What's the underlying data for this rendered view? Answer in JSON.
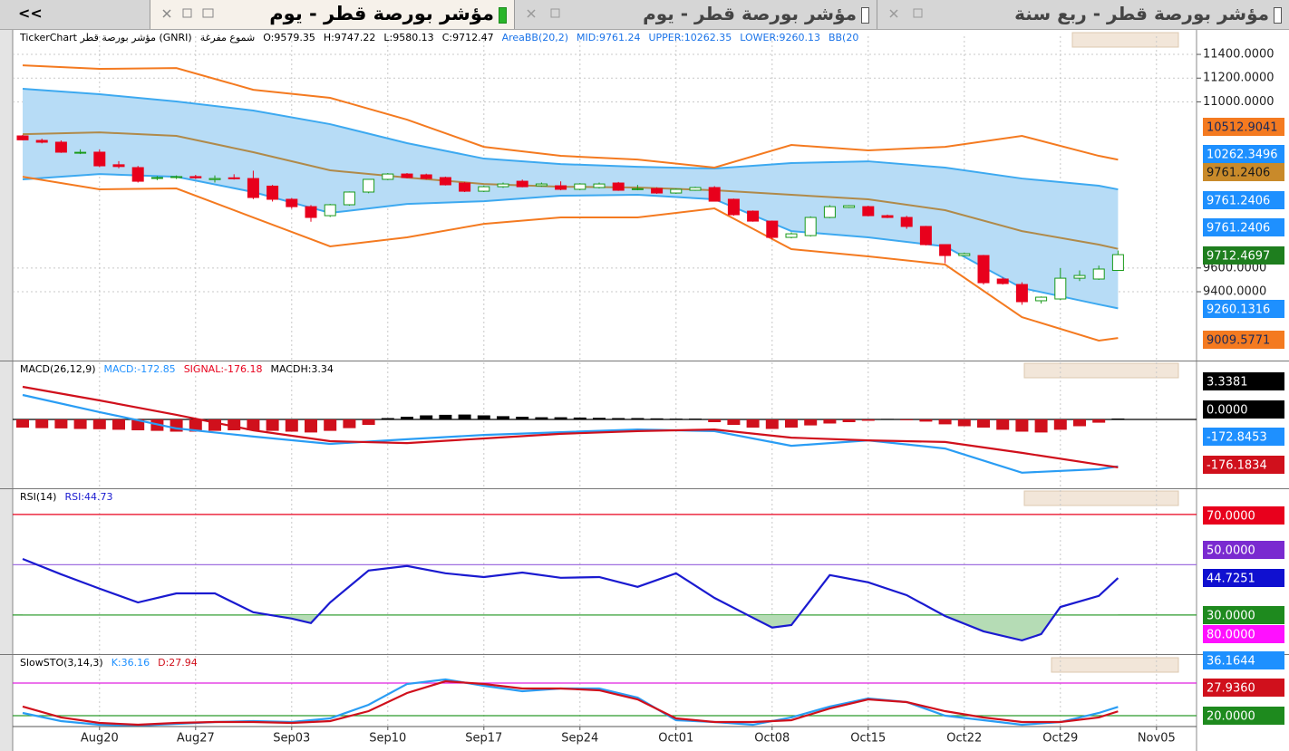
{
  "collapse_button": "<<",
  "tabs": [
    "مؤشر بورصة قطر - ربع سنة",
    "مؤشر بورصة قطر - يوم",
    "مؤشر بورصة قطر - يوم"
  ],
  "chart_data": [
    {
      "type": "candlestick",
      "info": [
        {
          "text": "TickerChart مؤشر بورصة قطر (GNRI)",
          "color": "#000000"
        },
        {
          "text": "شموع مفرغة",
          "color": "#000000"
        },
        {
          "text": "O:9579.35",
          "color": "#000000"
        },
        {
          "text": "H:9747.22",
          "color": "#000000"
        },
        {
          "text": "L:9580.13",
          "color": "#000000"
        },
        {
          "text": "C:9712.47",
          "color": "#000000"
        },
        {
          "text": "AreaBB(20,2)",
          "color": "#1a73e8"
        },
        {
          "text": "MID:9761.24",
          "color": "#1a73e8"
        },
        {
          "text": "UPPER:10262.35",
          "color": "#1a73e8"
        },
        {
          "text": "LOWER:9260.13",
          "color": "#1a73e8"
        },
        {
          "text": "BB(20",
          "color": "#1a73e8"
        }
      ],
      "categories": [
        null,
        null,
        null,
        null,
        "Aug20",
        null,
        null,
        null,
        null,
        "Aug27",
        null,
        null,
        null,
        null,
        "Sep03",
        null,
        null,
        null,
        null,
        "Sep10",
        null,
        null,
        null,
        null,
        "Sep17",
        null,
        null,
        null,
        null,
        "Sep24",
        null,
        null,
        null,
        null,
        "Oct01",
        null,
        null,
        null,
        null,
        "Oct08",
        null,
        null,
        null,
        null,
        "Oct15",
        null,
        null,
        null,
        null,
        "Oct22",
        null,
        null,
        null,
        null,
        "Oct29",
        null,
        null,
        null,
        null,
        "Nov05"
      ],
      "open": [
        10713,
        10675,
        10660,
        10570,
        10576,
        10470,
        10446,
        10355,
        10362,
        10370,
        10345,
        10360,
        10354,
        10290,
        10179,
        10117,
        10041,
        10133,
        10240,
        10347,
        10392,
        10385,
        10362,
        10316,
        10247,
        10285,
        10331,
        10293,
        10293,
        10263,
        10278,
        10316,
        10263,
        10270,
        10232,
        10255,
        10278,
        10179,
        10079,
        9995,
        9858,
        9873,
        10026,
        10110,
        10117,
        10041,
        10026,
        9950,
        9797,
        9705,
        9705,
        9507,
        9461,
        9324,
        9339,
        9514,
        9507,
        9579.35,
        null,
        null
      ],
      "high": [
        10722,
        10690,
        10675,
        10600,
        10600,
        10500,
        10460,
        10375,
        10380,
        10385,
        10380,
        10390,
        10420,
        10300,
        10190,
        10130,
        10140,
        10245,
        10350,
        10400,
        10400,
        10395,
        10370,
        10325,
        10295,
        10320,
        10345,
        10320,
        10330,
        10315,
        10320,
        10325,
        10300,
        10280,
        10270,
        10285,
        10290,
        10185,
        10085,
        10000,
        9900,
        10035,
        10130,
        10130,
        10125,
        10050,
        10040,
        9955,
        9800,
        9730,
        9710,
        9520,
        9480,
        9360,
        9600,
        9580,
        9620,
        9747.22,
        null,
        null
      ],
      "low": [
        10675,
        10650,
        10570,
        10560,
        10450,
        10440,
        10320,
        10340,
        10350,
        10350,
        10320,
        10345,
        10180,
        10160,
        10100,
        9990,
        10030,
        10125,
        10230,
        10340,
        10355,
        10345,
        10295,
        10240,
        10240,
        10275,
        10280,
        10285,
        10255,
        10255,
        10270,
        10250,
        10255,
        10225,
        10225,
        10250,
        10160,
        10040,
        9990,
        9840,
        9850,
        9865,
        10020,
        10105,
        10035,
        10020,
        9930,
        9790,
        9640,
        9700,
        9460,
        9460,
        9290,
        9300,
        9330,
        9490,
        9500,
        9580.13,
        null,
        null
      ],
      "close": [
        10680,
        10660,
        10576,
        10575,
        10461,
        10455,
        10331,
        10362,
        10370,
        10360,
        10354,
        10352,
        10194,
        10179,
        10117,
        10026,
        10133,
        10240,
        10347,
        10392,
        10362,
        10354,
        10301,
        10247,
        10285,
        10308,
        10285,
        10308,
        10263,
        10308,
        10308,
        10255,
        10268,
        10232,
        10263,
        10278,
        10163,
        10049,
        9995,
        9858,
        9888,
        10026,
        10117,
        10125,
        10041,
        10026,
        9950,
        9797,
        9705,
        9721,
        9476,
        9469,
        9316,
        9354,
        9514,
        9537,
        9591,
        9712.47,
        null,
        null
      ],
      "up_color": "#1a9a1a",
      "down_color": "#e8001c",
      "lines": [
        {
          "color": "#3da9f0",
          "x": [
            0,
            4,
            8,
            12,
            16,
            20,
            24,
            28,
            32,
            36,
            40,
            44,
            48,
            52,
            56,
            57
          ],
          "values": [
            11110,
            11064,
            11003,
            10927,
            10812,
            10652,
            10522,
            10476,
            10453,
            10438,
            10484,
            10499,
            10446,
            10354,
            10293,
            10262.35
          ]
        },
        {
          "color": "#3da9f0",
          "x": [
            0,
            4,
            8,
            12,
            16,
            20,
            24,
            28,
            32,
            36,
            40,
            44,
            48,
            52,
            56,
            57
          ],
          "values": [
            10347,
            10392,
            10369,
            10240,
            10064,
            10140,
            10163,
            10209,
            10217,
            10179,
            9911,
            9858,
            9782,
            9431,
            9293,
            9260.13
          ]
        },
        {
          "color": "#b08a4a",
          "x": [
            0,
            4,
            8,
            12,
            16,
            20,
            24,
            28,
            32,
            36,
            40,
            44,
            48,
            52,
            56,
            57
          ],
          "values": [
            10728,
            10743,
            10713,
            10576,
            10423,
            10362,
            10308,
            10285,
            10278,
            10255,
            10217,
            10179,
            10087,
            9911,
            9797,
            9761.24
          ]
        },
        {
          "color": "#f47a20",
          "x": [
            0,
            4,
            8,
            12,
            16,
            20,
            24,
            28,
            32,
            36,
            40,
            44,
            48,
            52,
            56,
            57
          ],
          "values": [
            11308,
            11278,
            11285,
            11102,
            11034,
            10850,
            10621,
            10545,
            10514,
            10446,
            10637,
            10591,
            10621,
            10713,
            10545,
            10512.9
          ]
        },
        {
          "color": "#f47a20",
          "x": [
            0,
            4,
            8,
            12,
            16,
            20,
            24,
            28,
            32,
            36,
            40,
            44,
            48,
            52,
            56,
            57
          ],
          "values": [
            10369,
            10263,
            10270,
            10026,
            9782,
            9858,
            9972,
            10026,
            10026,
            10102,
            9759,
            9698,
            9629,
            9186,
            8988,
            9009.58
          ]
        }
      ],
      "fill_between": [
        0,
        1
      ],
      "fill_color": "#b7dcf6",
      "ylim": [
        8820,
        11553
      ],
      "yticks": [
        {
          "value": 9400,
          "label": "9400.0000"
        },
        {
          "value": 9600,
          "label": "9600.0000"
        },
        {
          "value": 11000,
          "label": "11000.0000"
        },
        {
          "value": 11200,
          "label": "11200.0000"
        },
        {
          "value": 11400,
          "label": "11400.0000"
        }
      ],
      "grid": true,
      "badges": [
        {
          "value": 10512.9041,
          "color": "#f47a20",
          "text_color": "#1a2a5a"
        },
        {
          "value": 10262.3496,
          "color": "#1e90ff",
          "text_color": "#ffffff"
        },
        {
          "value": 9761.2406,
          "color": "#c98a2a",
          "text_color": "#1a1a1a"
        },
        {
          "value": 9761.2406,
          "color": "#1e90ff",
          "text_color": "#ffffff"
        },
        {
          "value": 9761.2406,
          "color": "#1e90ff",
          "text_color": "#ffffff"
        },
        {
          "value": 9712.4697,
          "color": "#1e7e1e",
          "text_color": "#ffffff"
        },
        {
          "value": 9260.1316,
          "color": "#1e90ff",
          "text_color": "#ffffff"
        },
        {
          "value": 9009.5771,
          "color": "#f47a20",
          "text_color": "#1a2a5a"
        }
      ]
    },
    {
      "type": "line",
      "info": [
        {
          "text": "MACD(26,12,9)",
          "color": "#000000"
        },
        {
          "text": "MACD:-172.85",
          "color": "#1e90ff"
        },
        {
          "text": "SIGNAL:-176.18",
          "color": "#e8001c"
        },
        {
          "text": "MACDH:3.34",
          "color": "#000000"
        }
      ],
      "histogram": [
        -30,
        -32,
        -33,
        -35,
        -36,
        -38,
        -40,
        -42,
        -45,
        -45,
        -42,
        -40,
        -40,
        -42,
        -45,
        -48,
        -42,
        -32,
        -20,
        5,
        10,
        15,
        17,
        18,
        15,
        12,
        10,
        8,
        8,
        7,
        6,
        5,
        5,
        4,
        3,
        3,
        -10,
        -20,
        -30,
        -35,
        -30,
        -22,
        -15,
        -10,
        -5,
        2,
        -3,
        -8,
        -18,
        -25,
        -30,
        -38,
        -45,
        -48,
        -38,
        -25,
        -12,
        3.34
      ],
      "histogram_colors": {
        "up": "#000000",
        "down": "#d0101c"
      },
      "lines": [
        {
          "color": "#2a9df4",
          "x": [
            0,
            4,
            8,
            12,
            16,
            20,
            24,
            28,
            32,
            36,
            40,
            44,
            48,
            52,
            56,
            57
          ],
          "values": [
            90,
            27,
            -33,
            -63,
            -90,
            -73,
            -57,
            -47,
            -37,
            -43,
            -97,
            -77,
            -107,
            -196,
            -183,
            -172.85
          ]
        },
        {
          "color": "#d0101c",
          "x": [
            0,
            4,
            8,
            12,
            16,
            20,
            24,
            28,
            32,
            36,
            40,
            44,
            48,
            52,
            56,
            57
          ],
          "values": [
            120,
            70,
            17,
            -40,
            -80,
            -87,
            -70,
            -53,
            -43,
            -37,
            -67,
            -77,
            -83,
            -123,
            -166,
            -176.18
          ]
        }
      ],
      "levels": [
        {
          "value": 0,
          "color": "#000000"
        }
      ],
      "ylim": [
        -250,
        210
      ],
      "badges": [
        {
          "value": 3.3381,
          "color": "#000000",
          "text_color": "#ffffff"
        },
        {
          "value": 0,
          "label": "0.0000",
          "color": "#000000",
          "text_color": "#ffffff"
        },
        {
          "value": -172.8453,
          "color": "#1e90ff",
          "text_color": "#ffffff"
        },
        {
          "value": -176.1834,
          "color": "#d0101c",
          "text_color": "#ffffff"
        }
      ]
    },
    {
      "type": "line",
      "info": [
        {
          "text": "RSI(14)",
          "color": "#000000"
        },
        {
          "text": "RSI:44.73",
          "color": "#1a1ad0"
        }
      ],
      "lines": [
        {
          "color": "#1a1ad0",
          "x": [
            0,
            2,
            4,
            6,
            8,
            10,
            12,
            14,
            15,
            16,
            18,
            20,
            22,
            24,
            26,
            28,
            30,
            32,
            34,
            36,
            38,
            39,
            40,
            42,
            44,
            46,
            48,
            50,
            52,
            53,
            54,
            56,
            57
          ],
          "values": [
            52.3,
            46.2,
            40.5,
            35.0,
            38.6,
            38.6,
            31.1,
            28.6,
            26.8,
            35.0,
            47.7,
            49.5,
            46.6,
            45.1,
            46.9,
            44.8,
            45.1,
            41.2,
            46.6,
            36.8,
            28.9,
            25.0,
            26.0,
            45.9,
            43.0,
            37.9,
            29.6,
            23.5,
            19.9,
            22.4,
            33.2,
            37.6,
            44.73
          ]
        }
      ],
      "levels": [
        {
          "value": 70,
          "color": "#e8001c"
        },
        {
          "value": 50,
          "color": "#a070e0"
        },
        {
          "value": 30,
          "color": "#2a9a2a"
        }
      ],
      "shade": "#b5dcb5",
      "ylim": [
        14.1,
        79.7
      ],
      "badges": [
        {
          "value": 70,
          "label": "70.0000",
          "color": "#e8001c",
          "text_color": "#ffffff"
        },
        {
          "value": 50,
          "label": "50.0000",
          "color": "#7a2ad0",
          "text_color": "#ffffff"
        },
        {
          "value": 44.7251,
          "color": "#1010d0",
          "text_color": "#ffffff"
        },
        {
          "value": 30,
          "label": "30.0000",
          "color": "#1e8a1e",
          "text_color": "#ffffff"
        }
      ]
    },
    {
      "type": "line",
      "info": [
        {
          "text": "SlowSTO(3,14,3)",
          "color": "#000000"
        },
        {
          "text": "K:36.16",
          "color": "#1e90ff"
        },
        {
          "text": "D:27.94",
          "color": "#d0101c"
        }
      ],
      "lines": [
        {
          "color": "#2a9df4",
          "x": [
            0,
            2,
            4,
            6,
            8,
            10,
            12,
            14,
            16,
            18,
            20,
            22,
            24,
            26,
            28,
            30,
            32,
            34,
            36,
            38,
            40,
            42,
            44,
            46,
            48,
            50,
            52,
            54,
            56,
            57
          ],
          "values": [
            25,
            10,
            3.3,
            1.7,
            5,
            8.3,
            10,
            8.3,
            15,
            40,
            78.3,
            86.7,
            75,
            65,
            70,
            70,
            53.3,
            11.7,
            8.3,
            3.3,
            16.7,
            36.7,
            51.7,
            45,
            20,
            11.7,
            3.3,
            8.3,
            25,
            36.16
          ]
        },
        {
          "color": "#d0101c",
          "x": [
            0,
            2,
            4,
            6,
            8,
            10,
            12,
            14,
            16,
            18,
            20,
            22,
            24,
            26,
            28,
            30,
            32,
            34,
            36,
            38,
            40,
            42,
            44,
            46,
            48,
            50,
            52,
            54,
            56,
            57
          ],
          "values": [
            36.7,
            16.7,
            6.7,
            3.3,
            6.7,
            8.3,
            8.3,
            6.7,
            10,
            28.3,
            61.7,
            83.3,
            78.3,
            70,
            70,
            66.7,
            50,
            15,
            8.3,
            8.3,
            11.7,
            33.3,
            50,
            45,
            28.3,
            16.7,
            8.3,
            8.3,
            16.7,
            27.94
          ]
        }
      ],
      "levels": [
        {
          "value": 80,
          "color": "#e020e0"
        },
        {
          "value": 20,
          "color": "#2a9a2a"
        }
      ],
      "ylim": [
        0,
        130
      ],
      "badges": [
        {
          "value": 80,
          "label": "80.0000",
          "color": "#ff10ff",
          "text_color": "#ffffff"
        },
        {
          "value": 36.1644,
          "color": "#1e90ff",
          "text_color": "#ffffff"
        },
        {
          "value": 27.936,
          "label": "27.9360",
          "color": "#d0101c",
          "text_color": "#ffffff"
        },
        {
          "value": 20,
          "label": "20.0000",
          "color": "#1e8a1e",
          "text_color": "#ffffff"
        }
      ]
    }
  ]
}
